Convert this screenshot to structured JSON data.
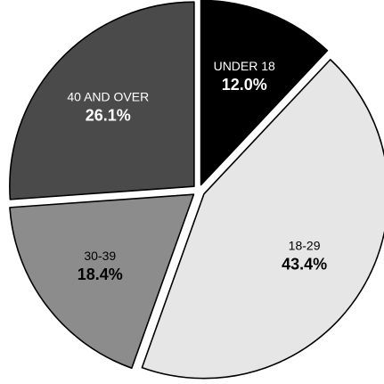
{
  "chart_data": {
    "type": "pie",
    "start_angle_deg": 0,
    "direction": "clockwise",
    "slices": [
      {
        "label": "UNDER 18",
        "value_label": "12.0%",
        "value": 12.0,
        "color": "#000000",
        "text_color": "#ffffff",
        "exploded": true
      },
      {
        "label": "18-29",
        "value_label": "43.4%",
        "value": 43.4,
        "color": "#e6e6e6",
        "text_color": "#000000",
        "exploded": true
      },
      {
        "label": "30-39",
        "value_label": "18.4%",
        "value": 18.4,
        "color": "#8c8c8c",
        "text_color": "#000000",
        "exploded": true
      },
      {
        "label": "40 AND OVER",
        "value_label": "26.1%",
        "value": 26.1,
        "color": "#4a4a4a",
        "text_color": "#ffffff",
        "exploded": true
      }
    ]
  }
}
